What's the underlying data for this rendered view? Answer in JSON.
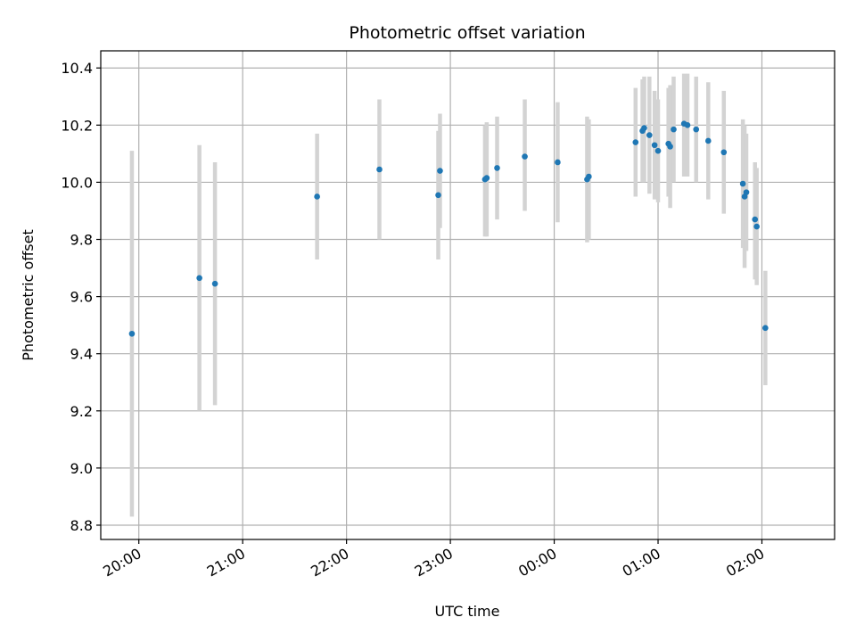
{
  "chart_data": {
    "type": "scatter",
    "title": "Photometric offset variation",
    "xlabel": "UTC time",
    "ylabel": "Photometric offset",
    "grid": true,
    "xlim": [
      "19:38",
      "02:42"
    ],
    "ylim": [
      8.75,
      10.46
    ],
    "xticks": [
      "20:00",
      "21:00",
      "22:00",
      "23:00",
      "00:00",
      "01:00",
      "02:00"
    ],
    "yticks": [
      8.8,
      9.0,
      9.2,
      9.4,
      9.6,
      9.8,
      10.0,
      10.2,
      10.4
    ],
    "ytick_labels": [
      "8.8",
      "9.0",
      "9.2",
      "9.4",
      "9.6",
      "9.8",
      "10.0",
      "10.2",
      "10.4"
    ],
    "colors": {
      "point": "#1f77b4",
      "errorbar": "#d3d3d3",
      "grid": "#b0b0b0"
    },
    "points": [
      {
        "x": "19:56",
        "y": 9.47,
        "ylow": 8.83,
        "yhigh": 10.11
      },
      {
        "x": "20:35",
        "y": 9.665,
        "ylow": 9.2,
        "yhigh": 10.13
      },
      {
        "x": "20:44",
        "y": 9.645,
        "ylow": 9.22,
        "yhigh": 10.07
      },
      {
        "x": "21:43",
        "y": 9.95,
        "ylow": 9.73,
        "yhigh": 10.17
      },
      {
        "x": "22:19",
        "y": 10.045,
        "ylow": 9.8,
        "yhigh": 10.29
      },
      {
        "x": "22:53",
        "y": 9.955,
        "ylow": 9.73,
        "yhigh": 10.18
      },
      {
        "x": "22:54",
        "y": 10.04,
        "ylow": 9.84,
        "yhigh": 10.24
      },
      {
        "x": "23:20",
        "y": 10.01,
        "ylow": 9.81,
        "yhigh": 10.2
      },
      {
        "x": "23:21",
        "y": 10.015,
        "ylow": 9.81,
        "yhigh": 10.21
      },
      {
        "x": "23:27",
        "y": 10.05,
        "ylow": 9.87,
        "yhigh": 10.23
      },
      {
        "x": "23:43",
        "y": 10.09,
        "ylow": 9.9,
        "yhigh": 10.29
      },
      {
        "x": "00:02",
        "y": 10.07,
        "ylow": 9.86,
        "yhigh": 10.28
      },
      {
        "x": "00:19",
        "y": 10.01,
        "ylow": 9.79,
        "yhigh": 10.23
      },
      {
        "x": "00:20",
        "y": 10.02,
        "ylow": 9.8,
        "yhigh": 10.22
      },
      {
        "x": "00:47",
        "y": 10.14,
        "ylow": 9.95,
        "yhigh": 10.33
      },
      {
        "x": "00:51",
        "y": 10.18,
        "ylow": 10.0,
        "yhigh": 10.36
      },
      {
        "x": "00:52",
        "y": 10.19,
        "ylow": 10.0,
        "yhigh": 10.37
      },
      {
        "x": "00:55",
        "y": 10.165,
        "ylow": 9.96,
        "yhigh": 10.37
      },
      {
        "x": "00:58",
        "y": 10.13,
        "ylow": 9.94,
        "yhigh": 10.32
      },
      {
        "x": "01:00",
        "y": 10.11,
        "ylow": 9.93,
        "yhigh": 10.29
      },
      {
        "x": "01:06",
        "y": 10.135,
        "ylow": 9.95,
        "yhigh": 10.33
      },
      {
        "x": "01:07",
        "y": 10.125,
        "ylow": 9.91,
        "yhigh": 10.34
      },
      {
        "x": "01:09",
        "y": 10.185,
        "ylow": 10.0,
        "yhigh": 10.37
      },
      {
        "x": "01:15",
        "y": 10.205,
        "ylow": 10.02,
        "yhigh": 10.38
      },
      {
        "x": "01:17",
        "y": 10.2,
        "ylow": 10.02,
        "yhigh": 10.38
      },
      {
        "x": "01:22",
        "y": 10.185,
        "ylow": 10.0,
        "yhigh": 10.37
      },
      {
        "x": "01:29",
        "y": 10.145,
        "ylow": 9.94,
        "yhigh": 10.35
      },
      {
        "x": "01:38",
        "y": 10.105,
        "ylow": 9.89,
        "yhigh": 10.32
      },
      {
        "x": "01:49",
        "y": 9.995,
        "ylow": 9.77,
        "yhigh": 10.22
      },
      {
        "x": "01:50",
        "y": 9.95,
        "ylow": 9.7,
        "yhigh": 10.2
      },
      {
        "x": "01:51",
        "y": 9.965,
        "ylow": 9.76,
        "yhigh": 10.17
      },
      {
        "x": "01:56",
        "y": 9.87,
        "ylow": 9.66,
        "yhigh": 10.07
      },
      {
        "x": "01:57",
        "y": 9.845,
        "ylow": 9.64,
        "yhigh": 10.05
      },
      {
        "x": "02:02",
        "y": 9.49,
        "ylow": 9.29,
        "yhigh": 9.69
      }
    ]
  }
}
